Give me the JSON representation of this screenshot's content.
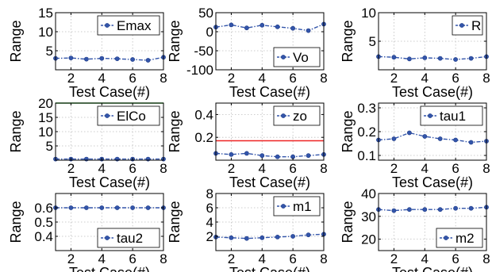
{
  "chart_data": [
    {
      "type": "line",
      "legend": "Emax",
      "xlabel": "Test Case(#)",
      "ylabel": "Range",
      "xlim": [
        1,
        8
      ],
      "ylim": [
        0,
        15
      ],
      "xticks": [
        2,
        4,
        6,
        8
      ],
      "yticks": [
        5,
        10,
        15
      ],
      "grid": true,
      "legend_position": "top-right",
      "x": [
        1,
        2,
        3,
        4,
        5,
        6,
        7,
        8
      ],
      "series": [
        {
          "values": [
            3.0,
            3.1,
            2.8,
            3.0,
            2.9,
            2.7,
            2.5,
            3.3
          ],
          "color": "#3355aa"
        }
      ]
    },
    {
      "type": "line",
      "legend": "Vo",
      "xlabel": "Test Case(#)",
      "ylabel": "Range",
      "xlim": [
        1,
        8
      ],
      "ylim": [
        -100,
        50
      ],
      "xticks": [
        2,
        4,
        6,
        8
      ],
      "yticks": [
        -100,
        -50,
        0,
        50
      ],
      "grid": true,
      "legend_position": "bottom-right",
      "x": [
        1,
        2,
        3,
        4,
        5,
        6,
        7,
        8
      ],
      "series": [
        {
          "values": [
            12,
            18,
            10,
            17,
            13,
            9,
            3,
            20
          ],
          "color": "#3355aa"
        }
      ]
    },
    {
      "type": "line",
      "legend": "R",
      "xlabel": "Test Case(#)",
      "ylabel": "Range",
      "xlim": [
        1,
        8
      ],
      "ylim": [
        0,
        10
      ],
      "xticks": [
        2,
        4,
        6,
        8
      ],
      "yticks": [
        5,
        10
      ],
      "grid": true,
      "legend_position": "top-right",
      "x": [
        1,
        2,
        3,
        4,
        5,
        6,
        7,
        8
      ],
      "series": [
        {
          "values": [
            2.3,
            2.2,
            1.9,
            2.1,
            2.0,
            1.8,
            2.0,
            2.3
          ],
          "color": "#3355aa"
        }
      ]
    },
    {
      "type": "line",
      "legend": "ElCo",
      "xlabel": "Test Case(#)",
      "ylabel": "Range",
      "xlim": [
        1,
        8
      ],
      "ylim": [
        0,
        20
      ],
      "xticks": [
        2,
        4,
        6,
        8
      ],
      "yticks": [
        5,
        10,
        15,
        20
      ],
      "grid": true,
      "legend_position": "top-right",
      "x": [
        1,
        2,
        3,
        4,
        5,
        6,
        7,
        8
      ],
      "series": [
        {
          "values": [
            0.4,
            0.4,
            0.4,
            0.4,
            0.4,
            0.4,
            0.4,
            0.4
          ],
          "color": "#3355aa"
        },
        {
          "values": [
            20,
            20,
            20,
            20,
            20,
            20,
            20,
            20
          ],
          "color": "#33aa33",
          "marker": "none",
          "style": "solid"
        }
      ]
    },
    {
      "type": "line",
      "legend": "zo",
      "xlabel": "Test Case(#)",
      "ylabel": "Range",
      "xlim": [
        1,
        8
      ],
      "ylim": [
        0,
        0.5
      ],
      "xticks": [
        2,
        4,
        6,
        8
      ],
      "yticks": [
        0.2,
        0.4
      ],
      "grid": true,
      "legend_position": "top-right",
      "x": [
        1,
        2,
        3,
        4,
        5,
        6,
        7,
        8
      ],
      "series": [
        {
          "values": [
            0.06,
            0.05,
            0.06,
            0.04,
            0.03,
            0.03,
            0.04,
            0.05
          ],
          "color": "#3355aa"
        },
        {
          "values": [
            0.17,
            0.17,
            0.17,
            0.17,
            0.17,
            0.17,
            0.17,
            0.17
          ],
          "color": "#ee2222",
          "marker": "none",
          "style": "solid"
        }
      ]
    },
    {
      "type": "line",
      "legend": "tau1",
      "xlabel": "Test Case(#)",
      "ylabel": "Range",
      "xlim": [
        1,
        8
      ],
      "ylim": [
        0.08,
        0.32
      ],
      "xticks": [
        2,
        4,
        6,
        8
      ],
      "yticks": [
        0.1,
        0.2,
        0.3
      ],
      "grid": true,
      "legend_position": "top-right",
      "x": [
        1,
        2,
        3,
        4,
        5,
        6,
        7,
        8
      ],
      "series": [
        {
          "values": [
            0.165,
            0.17,
            0.195,
            0.18,
            0.17,
            0.165,
            0.155,
            0.16
          ],
          "color": "#3355aa"
        }
      ]
    },
    {
      "type": "line",
      "legend": "tau2",
      "xlabel": "Test Case(#)",
      "ylabel": "Range",
      "xlim": [
        1,
        8
      ],
      "ylim": [
        0.3,
        0.7
      ],
      "xticks": [
        2,
        4,
        6,
        8
      ],
      "yticks": [
        0.4,
        0.5,
        0.6
      ],
      "grid": true,
      "legend_position": "bottom-right",
      "x": [
        1,
        2,
        3,
        4,
        5,
        6,
        7,
        8
      ],
      "series": [
        {
          "values": [
            0.6,
            0.6,
            0.6,
            0.6,
            0.6,
            0.6,
            0.6,
            0.6
          ],
          "color": "#3355aa"
        }
      ]
    },
    {
      "type": "line",
      "legend": "m1",
      "xlabel": "Test Case(#)",
      "ylabel": "Range",
      "xlim": [
        1,
        8
      ],
      "ylim": [
        0,
        8
      ],
      "xticks": [
        2,
        4,
        6,
        8
      ],
      "yticks": [
        2,
        4,
        6,
        8
      ],
      "grid": true,
      "legend_position": "top-right",
      "x": [
        1,
        2,
        3,
        4,
        5,
        6,
        7,
        8
      ],
      "series": [
        {
          "values": [
            1.9,
            1.8,
            1.7,
            1.8,
            1.9,
            2.0,
            2.2,
            2.3
          ],
          "color": "#3355aa"
        }
      ]
    },
    {
      "type": "line",
      "legend": "m2",
      "xlabel": "Test Case(#)",
      "ylabel": "Range",
      "xlim": [
        1,
        8
      ],
      "ylim": [
        15,
        40
      ],
      "xticks": [
        2,
        4,
        6,
        8
      ],
      "yticks": [
        20,
        30,
        40
      ],
      "grid": true,
      "legend_position": "bottom-right",
      "x": [
        1,
        2,
        3,
        4,
        5,
        6,
        7,
        8
      ],
      "series": [
        {
          "values": [
            33,
            32.5,
            33,
            33,
            33,
            33.5,
            33.5,
            34
          ],
          "color": "#3355aa"
        }
      ]
    }
  ]
}
